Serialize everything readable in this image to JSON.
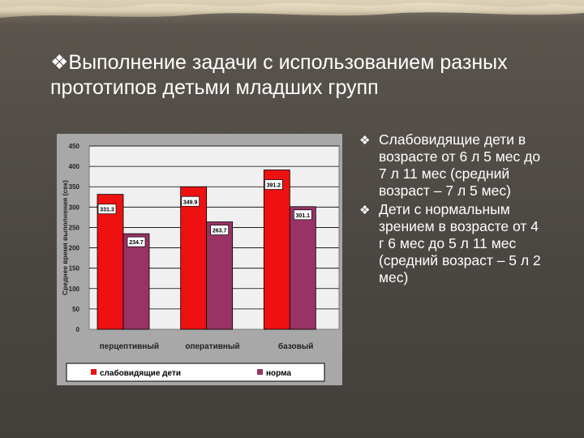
{
  "slide": {
    "title_marker": "❖",
    "title": "Выполнение задачи с использованием разных прототипов детьми младших групп"
  },
  "bullets": [
    {
      "icon": "❖",
      "text": "Слабовидящие дети в возрасте от 6 л 5 мес до  7 л 11 мес (средний возраст – 7 л 5 мес)"
    },
    {
      "icon": "❖",
      "text": "Дети с нормальным зрением в возрасте от 4 г 6 мес до  5 л 11 мес (средний возраст – 5 л 2 мес)"
    }
  ],
  "colors": {
    "series1": "#ee1111",
    "series2": "#993366",
    "plot_bg": "#f0f0f0"
  },
  "chart_data": {
    "type": "bar",
    "categories": [
      "перцептивный",
      "оперативный",
      "базовый"
    ],
    "series": [
      {
        "name": "слабовидящие дети",
        "values": [
          331.3,
          349.9,
          391.2
        ],
        "labels": [
          "331.3",
          "349.9",
          "391.2"
        ]
      },
      {
        "name": "норма",
        "values": [
          234.7,
          263.7,
          301.1
        ],
        "labels": [
          "234.7",
          "263.7",
          "301.1"
        ]
      }
    ],
    "ylabel": "Среднее время выполнения (сек)",
    "ylim": [
      0,
      450
    ],
    "yticks": [
      0,
      50,
      100,
      150,
      200,
      250,
      300,
      350,
      400,
      450
    ],
    "grid": true,
    "legend": "bottom"
  }
}
